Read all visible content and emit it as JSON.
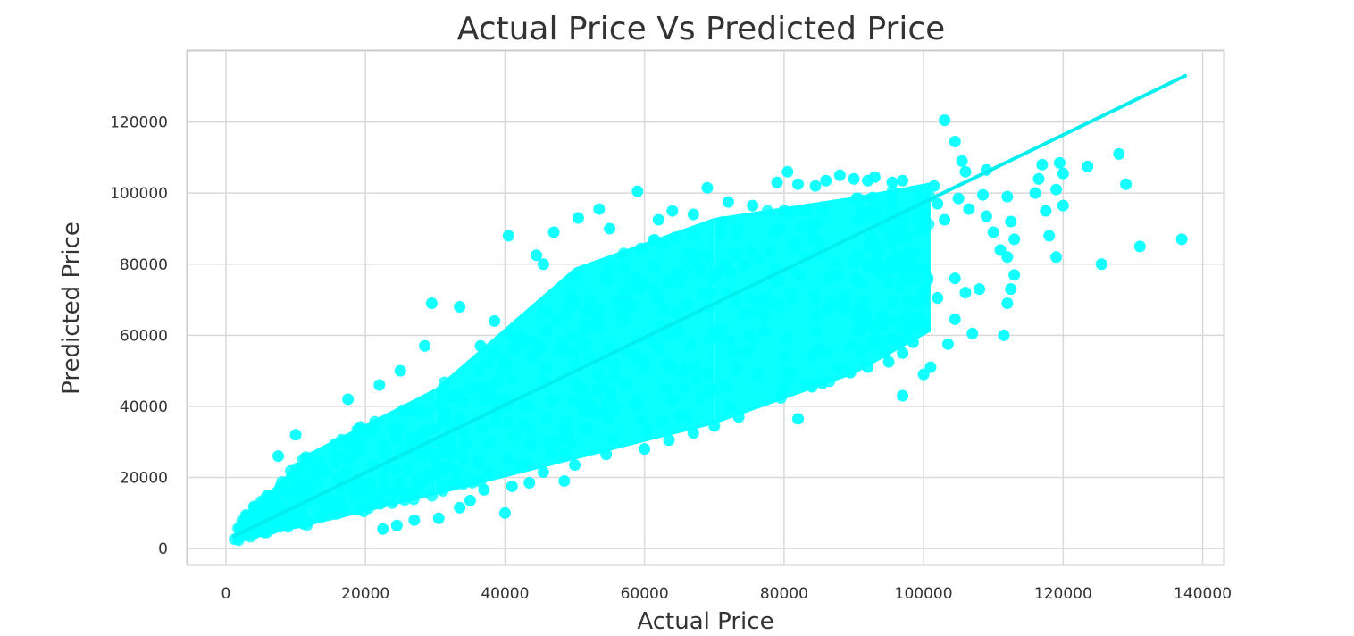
{
  "chart_data": {
    "type": "scatter",
    "title": "Actual Price  Vs  Predicted Price",
    "xlabel": "Actual Price",
    "ylabel": "Predicted Price",
    "xlim": [
      -5500,
      143000
    ],
    "ylim": [
      -4500,
      140000
    ],
    "xticks": [
      0,
      20000,
      40000,
      60000,
      80000,
      100000,
      120000,
      140000
    ],
    "yticks": [
      0,
      20000,
      40000,
      60000,
      80000,
      100000,
      120000
    ],
    "xtick_labels": [
      "0",
      "20000",
      "40000",
      "60000",
      "80000",
      "100000",
      "120000",
      "140000"
    ],
    "ytick_labels": [
      "0",
      "20000",
      "40000",
      "60000",
      "80000",
      "100000",
      "120000"
    ],
    "grid": true,
    "marker_color": "#00FFFF",
    "line_color": "#00EEEE",
    "regression_line": {
      "x": [
        1200,
        137500
      ],
      "y": [
        3500,
        133000
      ]
    },
    "cloud_bands": [
      {
        "x_start": 1200,
        "x_end": 12000,
        "lower_start": 1800,
        "lower_end": 6500,
        "upper_start": 6500,
        "upper_end": 27000
      },
      {
        "x_start": 12000,
        "x_end": 30000,
        "lower_start": 6500,
        "lower_end": 15000,
        "upper_start": 27000,
        "upper_end": 45000
      },
      {
        "x_start": 30000,
        "x_end": 50000,
        "lower_start": 15000,
        "lower_end": 25000,
        "upper_start": 45000,
        "upper_end": 79000
      },
      {
        "x_start": 50000,
        "x_end": 70000,
        "lower_start": 25000,
        "lower_end": 35000,
        "upper_start": 79000,
        "upper_end": 93000
      },
      {
        "x_start": 70000,
        "x_end": 90000,
        "lower_start": 35000,
        "lower_end": 49000,
        "upper_start": 93000,
        "upper_end": 99000
      },
      {
        "x_start": 90000,
        "x_end": 101000,
        "lower_start": 49000,
        "lower_end": 61000,
        "upper_start": 99000,
        "upper_end": 103000
      }
    ],
    "outliers": [
      [
        40000,
        10000
      ],
      [
        40500,
        88000
      ],
      [
        59000,
        100500
      ],
      [
        69000,
        101500
      ],
      [
        80500,
        106000
      ],
      [
        88000,
        105000
      ],
      [
        97000,
        43000
      ],
      [
        82000,
        36500
      ],
      [
        103000,
        120500
      ],
      [
        104500,
        114500
      ],
      [
        105500,
        109000
      ],
      [
        109000,
        106500
      ],
      [
        117000,
        108000
      ],
      [
        119500,
        108500
      ],
      [
        120000,
        105500
      ],
      [
        123500,
        107500
      ],
      [
        128000,
        111000
      ],
      [
        129000,
        102500
      ],
      [
        131000,
        85000
      ],
      [
        137000,
        87000
      ],
      [
        125500,
        80000
      ],
      [
        119000,
        82000
      ],
      [
        118000,
        88000
      ],
      [
        117500,
        95000
      ],
      [
        120000,
        96500
      ],
      [
        119000,
        101000
      ],
      [
        116000,
        100000
      ],
      [
        116500,
        104000
      ],
      [
        112000,
        99000
      ],
      [
        112500,
        92000
      ],
      [
        113000,
        87000
      ],
      [
        112000,
        82000
      ],
      [
        113000,
        77000
      ],
      [
        112500,
        73000
      ],
      [
        112000,
        69000
      ],
      [
        111500,
        60000
      ],
      [
        109000,
        93500
      ],
      [
        110000,
        89000
      ],
      [
        111000,
        84000
      ],
      [
        107000,
        60500
      ],
      [
        104500,
        64500
      ],
      [
        103500,
        57500
      ],
      [
        101000,
        51000
      ],
      [
        100000,
        49000
      ],
      [
        95000,
        52500
      ],
      [
        92000,
        51000
      ],
      [
        89500,
        49500
      ],
      [
        85500,
        46500
      ],
      [
        84000,
        45500
      ],
      [
        73500,
        37000
      ],
      [
        70000,
        34500
      ],
      [
        67000,
        32500
      ],
      [
        63500,
        30500
      ],
      [
        60000,
        28000
      ],
      [
        54500,
        26500
      ],
      [
        50000,
        23500
      ],
      [
        48500,
        19000
      ],
      [
        45500,
        21500
      ],
      [
        43500,
        18500
      ],
      [
        41000,
        17500
      ],
      [
        37000,
        16500
      ],
      [
        35000,
        13500
      ],
      [
        33500,
        11500
      ],
      [
        30500,
        8500
      ],
      [
        27000,
        8000
      ],
      [
        24500,
        6500
      ],
      [
        22500,
        5500
      ],
      [
        38500,
        64000
      ],
      [
        36500,
        57000
      ],
      [
        33500,
        68000
      ],
      [
        29500,
        69000
      ],
      [
        28500,
        57000
      ],
      [
        25000,
        50000
      ],
      [
        22000,
        46000
      ],
      [
        17500,
        42000
      ],
      [
        10000,
        32000
      ],
      [
        7500,
        26000
      ],
      [
        45500,
        80000
      ],
      [
        50500,
        93000
      ],
      [
        47000,
        89000
      ],
      [
        44500,
        82500
      ],
      [
        53500,
        95500
      ],
      [
        55000,
        90000
      ],
      [
        62000,
        92500
      ],
      [
        64000,
        95000
      ],
      [
        67000,
        94000
      ],
      [
        72000,
        97500
      ],
      [
        75500,
        96500
      ],
      [
        79000,
        103000
      ],
      [
        82000,
        102500
      ],
      [
        84500,
        102000
      ],
      [
        86000,
        103500
      ],
      [
        90000,
        104000
      ],
      [
        92000,
        103500
      ],
      [
        93000,
        104500
      ],
      [
        95500,
        103000
      ],
      [
        97000,
        103500
      ],
      [
        101500,
        102000
      ],
      [
        106000,
        106000
      ],
      [
        102000,
        97000
      ],
      [
        105000,
        98500
      ],
      [
        103000,
        92500
      ],
      [
        106500,
        95500
      ],
      [
        108500,
        99500
      ],
      [
        104500,
        76000
      ],
      [
        106000,
        72000
      ],
      [
        108000,
        73000
      ],
      [
        102000,
        70500
      ],
      [
        100000,
        73000
      ],
      [
        98500,
        58000
      ],
      [
        97000,
        55000
      ],
      [
        95500,
        59000
      ]
    ]
  }
}
